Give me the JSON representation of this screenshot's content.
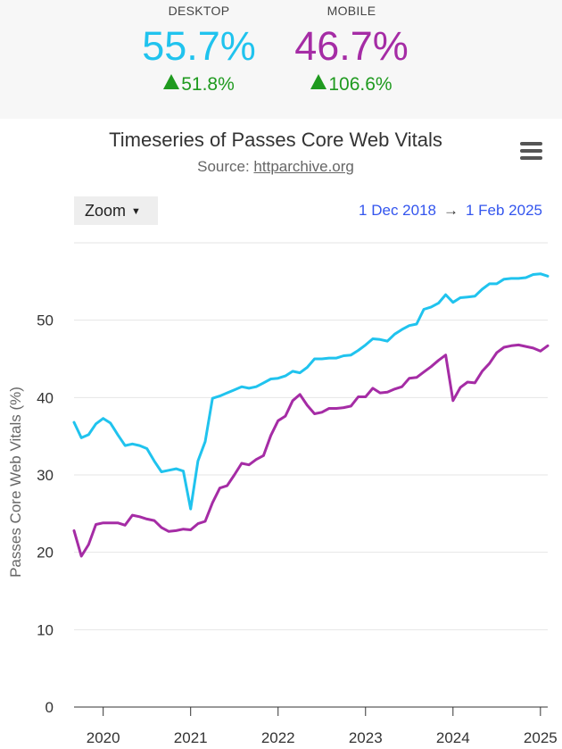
{
  "summary": {
    "desktop": {
      "label": "DESKTOP",
      "value": "55.7%",
      "change": "51.8%"
    },
    "mobile": {
      "label": "MOBILE",
      "value": "46.7%",
      "change": "106.6%"
    }
  },
  "colors": {
    "desktop": "#20c3ee",
    "mobile": "#a52ca5",
    "change_up": "#1f9a1f",
    "link": "#3355ee"
  },
  "chart_header": {
    "title": "Timeseries of Passes Core Web Vitals",
    "source_prefix": "Source: ",
    "source_link": "httparchive.org",
    "zoom_label": "Zoom",
    "range_start": "1 Dec 2018",
    "range_arrow": "→",
    "range_end": "1 Feb 2025",
    "menu_icon": "hamburger-menu-icon"
  },
  "chart_data": {
    "type": "line",
    "title": "Timeseries of Passes Core Web Vitals",
    "ylabel": "Passes Core Web Vitals (%)",
    "ylim": [
      0,
      60
    ],
    "yticks": [
      0,
      10,
      20,
      30,
      40,
      50
    ],
    "xlim": [
      "2019-09",
      "2025-02"
    ],
    "xticks": [
      {
        "label": "2020",
        "x": "2020-01"
      },
      {
        "label": "2021",
        "x": "2021-01"
      },
      {
        "label": "2022",
        "x": "2022-01"
      },
      {
        "label": "2023",
        "x": "2023-01"
      },
      {
        "label": "2024",
        "x": "2024-01"
      },
      {
        "label": "2025",
        "x": "2025-01"
      }
    ],
    "grid": true,
    "legend": "none",
    "x": [
      "2019-09",
      "2019-10",
      "2019-11",
      "2019-12",
      "2020-01",
      "2020-02",
      "2020-03",
      "2020-04",
      "2020-05",
      "2020-06",
      "2020-07",
      "2020-08",
      "2020-09",
      "2020-10",
      "2020-11",
      "2020-12",
      "2021-01",
      "2021-02",
      "2021-03",
      "2021-04",
      "2021-05",
      "2021-06",
      "2021-07",
      "2021-08",
      "2021-09",
      "2021-10",
      "2021-11",
      "2021-12",
      "2022-01",
      "2022-02",
      "2022-03",
      "2022-04",
      "2022-05",
      "2022-06",
      "2022-07",
      "2022-08",
      "2022-09",
      "2022-10",
      "2022-11",
      "2022-12",
      "2023-01",
      "2023-02",
      "2023-03",
      "2023-04",
      "2023-05",
      "2023-06",
      "2023-07",
      "2023-08",
      "2023-09",
      "2023-10",
      "2023-11",
      "2023-12",
      "2024-01",
      "2024-02",
      "2024-03",
      "2024-04",
      "2024-05",
      "2024-06",
      "2024-07",
      "2024-08",
      "2024-09",
      "2024-10",
      "2024-11",
      "2024-12",
      "2025-01",
      "2025-02"
    ],
    "series": [
      {
        "name": "desktop",
        "values": [
          36.8,
          34.8,
          35.2,
          36.6,
          37.3,
          36.7,
          35.2,
          33.8,
          34.0,
          33.8,
          33.4,
          31.8,
          30.4,
          30.6,
          30.8,
          30.5,
          25.6,
          31.8,
          34.3,
          39.9,
          40.2,
          40.6,
          41.0,
          41.4,
          41.2,
          41.4,
          41.9,
          42.4,
          42.5,
          42.8,
          43.4,
          43.2,
          43.9,
          45.0,
          45.0,
          45.1,
          45.1,
          45.4,
          45.5,
          46.1,
          46.8,
          47.6,
          47.5,
          47.3,
          48.2,
          48.8,
          49.3,
          49.5,
          51.4,
          51.7,
          52.2,
          53.3,
          52.3,
          52.9,
          53.0,
          53.1,
          54.0,
          54.7,
          54.7,
          55.3,
          55.4,
          55.4,
          55.5,
          55.9,
          56.0,
          55.7
        ]
      },
      {
        "name": "mobile",
        "values": [
          22.8,
          19.5,
          21.0,
          23.6,
          23.8,
          23.8,
          23.8,
          23.5,
          24.8,
          24.6,
          24.3,
          24.1,
          23.2,
          22.7,
          22.8,
          23.0,
          22.9,
          23.7,
          24.0,
          26.4,
          28.3,
          28.6,
          30.0,
          31.5,
          31.3,
          32.0,
          32.5,
          35.1,
          37.0,
          37.6,
          39.6,
          40.4,
          39.0,
          37.9,
          38.1,
          38.6,
          38.6,
          38.7,
          38.9,
          40.1,
          40.1,
          41.2,
          40.6,
          40.7,
          41.1,
          41.4,
          42.5,
          42.6,
          43.3,
          44.0,
          44.8,
          45.5,
          39.6,
          41.3,
          42.0,
          41.9,
          43.4,
          44.4,
          45.8,
          46.5,
          46.7,
          46.8,
          46.6,
          46.4,
          46.0,
          46.7
        ]
      }
    ]
  }
}
